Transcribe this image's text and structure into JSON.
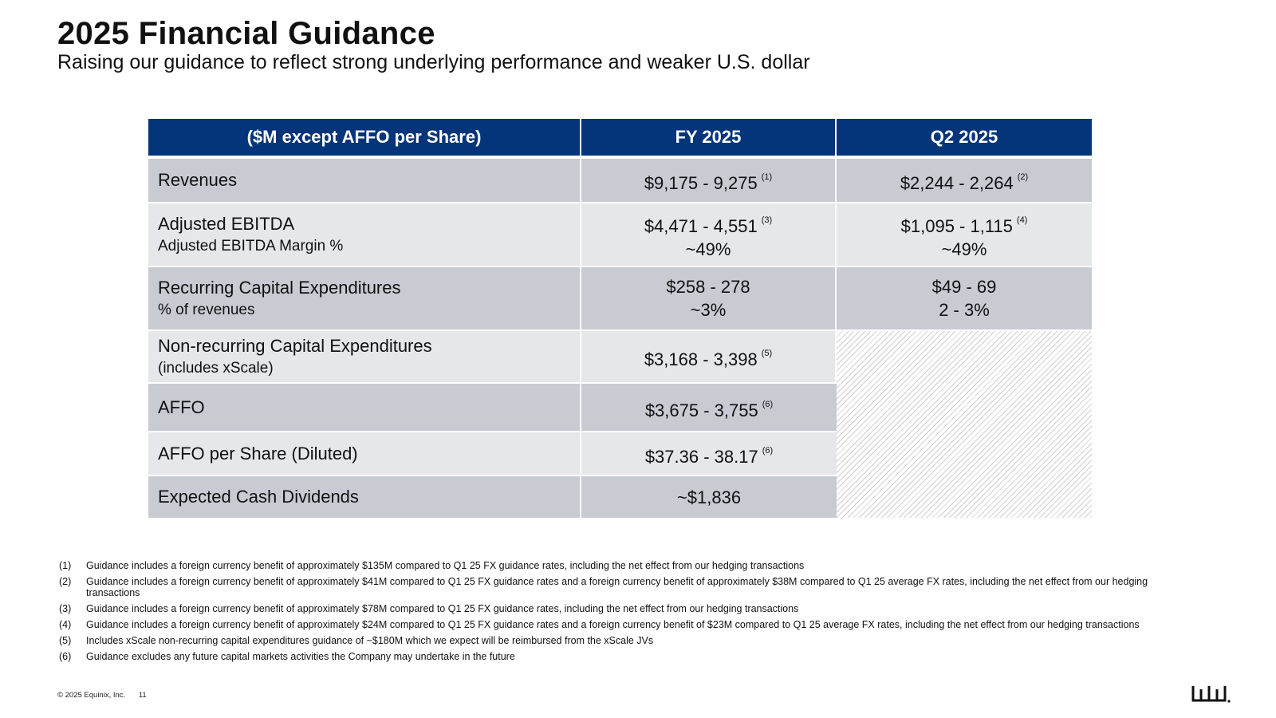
{
  "header": {
    "title": "2025 Financial Guidance",
    "subtitle": "Raising our guidance to reflect strong underlying performance and weaker U.S. dollar"
  },
  "table": {
    "columns": [
      "($M except AFFO per Share)",
      "FY 2025",
      "Q2 2025"
    ],
    "rows": [
      {
        "label": "Revenues",
        "sublabel": "",
        "fy": "$9,175 - 9,275",
        "fy_sub": "",
        "fy_fn": "(1)",
        "q2": "$2,244 - 2,264",
        "q2_sub": "",
        "q2_fn": "(2)"
      },
      {
        "label": "Adjusted EBITDA",
        "sublabel": "Adjusted EBITDA Margin %",
        "fy": "$4,471 - 4,551",
        "fy_sub": "~49%",
        "fy_fn": "(3)",
        "q2": "$1,095 - 1,115",
        "q2_sub": "~49%",
        "q2_fn": "(4)"
      },
      {
        "label": "Recurring Capital Expenditures",
        "sublabel": "% of revenues",
        "fy": "$258 - 278",
        "fy_sub": "~3%",
        "fy_fn": "",
        "q2": "$49 - 69",
        "q2_sub": "2 - 3%",
        "q2_fn": ""
      },
      {
        "label": "Non-recurring Capital Expenditures",
        "sublabel": "(includes xScale)",
        "fy": "$3,168 - 3,398",
        "fy_sub": "",
        "fy_fn": "(5)"
      },
      {
        "label": "AFFO",
        "sublabel": "",
        "fy": "$3,675 - 3,755",
        "fy_sub": "",
        "fy_fn": "(6)"
      },
      {
        "label": "AFFO per Share (Diluted)",
        "sublabel": "",
        "fy": "$37.36 - 38.17",
        "fy_sub": "",
        "fy_fn": "(6)"
      },
      {
        "label": "Expected Cash Dividends",
        "sublabel": "",
        "fy": "~$1,836",
        "fy_sub": "",
        "fy_fn": ""
      }
    ]
  },
  "footnotes": [
    {
      "num": "(1)",
      "text": "Guidance includes a foreign currency benefit of approximately $135M compared to Q1 25 FX guidance rates, including  the net effect from our hedging transactions"
    },
    {
      "num": "(2)",
      "text": "Guidance includes a foreign currency benefit of approximately $41M compared to Q1 25 FX guidance rates and a foreign currency benefit of approximately $38M compared to Q1 25 average FX rates, including the net effect from our hedging transactions"
    },
    {
      "num": "(3)",
      "text": "Guidance includes a foreign currency benefit of approximately $78M compared to Q1 25 FX guidance rates, including the net effect from our hedging transactions"
    },
    {
      "num": "(4)",
      "text": "Guidance includes a foreign currency benefit of approximately $24M compared to Q1 25 FX guidance rates and a foreign currency benefit of $23M compared to Q1 25 average FX rates, including the net effect from our hedging transactions"
    },
    {
      "num": "(5)",
      "text": "Includes xScale non-recurring capital expenditures guidance of ~$180M which we expect will be reimbursed from the xScale JVs"
    },
    {
      "num": "(6)",
      "text": "Guidance excludes any future capital markets activities the Company may undertake in the future"
    }
  ],
  "footer": {
    "copyright": "© 2025 Equinix, Inc.",
    "page_number": "11",
    "logo_icon": "equinix-logo-icon"
  },
  "colors": {
    "header_bg": "#04357a",
    "row_dark": "#c9cbd3",
    "row_light": "#e6e7eb"
  }
}
